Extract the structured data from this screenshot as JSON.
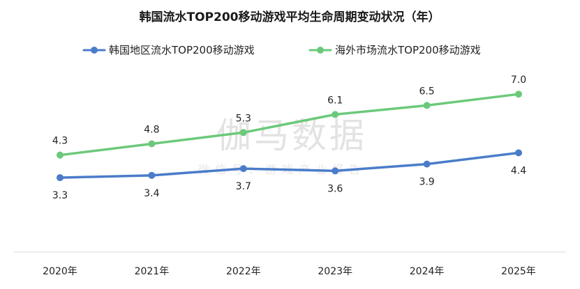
{
  "chart_data": {
    "type": "line",
    "title": "韩国流水TOP200移动游戏平均生命周期变动状况（年）",
    "categories": [
      "2020年",
      "2021年",
      "2022年",
      "2023年",
      "2024年",
      "2025年"
    ],
    "series": [
      {
        "name": "韩国地区流水TOP200移动游戏",
        "values": [
          3.3,
          3.4,
          3.7,
          3.6,
          3.9,
          4.4
        ],
        "color": "#4a7cc9",
        "label_position": "below"
      },
      {
        "name": "海外市场流水TOP200移动游戏",
        "values": [
          4.3,
          4.8,
          5.3,
          6.1,
          6.5,
          7.0
        ],
        "color": "#6cc97a",
        "label_position": "above"
      }
    ],
    "ylim": [
      0,
      8.5
    ],
    "grid": false,
    "legend_position": "top-center",
    "axis_color": "#d8d8d8"
  },
  "watermark": {
    "main": "伽马数据",
    "sub": "微信号：游戏产业报告"
  }
}
